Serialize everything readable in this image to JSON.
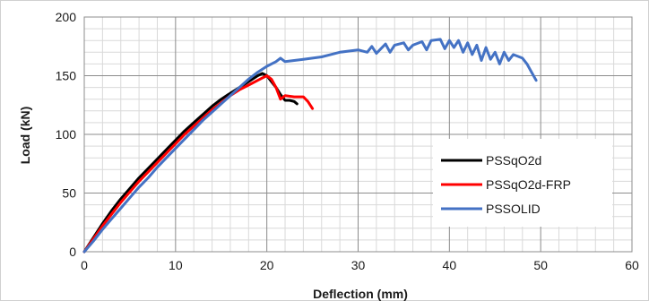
{
  "chart_data": {
    "type": "line",
    "xlabel": "Deflection (mm)",
    "ylabel": "Load (kN)",
    "xlim": [
      0,
      60
    ],
    "ylim": [
      0,
      200
    ],
    "x_major_ticks": [
      0,
      10,
      20,
      30,
      40,
      50,
      60
    ],
    "y_major_ticks": [
      0,
      50,
      100,
      150,
      200
    ],
    "x_tick_labels": [
      "0",
      "10",
      "20",
      "30",
      "40",
      "50",
      "60"
    ],
    "y_tick_labels": [
      "0",
      "50",
      "100",
      "150",
      "200"
    ],
    "x_minor_step": 2,
    "y_minor_step": 10,
    "grid": true,
    "legend": "right-bottom",
    "series": [
      {
        "name": "PSSqO2d",
        "color": "#000000",
        "points": [
          [
            0,
            0
          ],
          [
            1,
            12
          ],
          [
            2,
            24
          ],
          [
            3,
            35
          ],
          [
            4,
            45
          ],
          [
            5,
            54
          ],
          [
            6,
            63
          ],
          [
            7,
            71
          ],
          [
            8,
            79
          ],
          [
            9,
            87
          ],
          [
            10,
            95
          ],
          [
            11,
            103
          ],
          [
            12,
            110
          ],
          [
            13,
            117
          ],
          [
            14,
            124
          ],
          [
            15,
            130
          ],
          [
            16,
            135
          ],
          [
            17,
            140
          ],
          [
            18,
            145
          ],
          [
            19,
            150
          ],
          [
            19.5,
            152
          ],
          [
            20,
            150
          ],
          [
            20.5,
            145
          ],
          [
            21,
            140
          ],
          [
            21.5,
            134
          ],
          [
            22,
            129
          ],
          [
            22.5,
            129
          ],
          [
            23,
            128
          ],
          [
            23.3,
            126
          ]
        ]
      },
      {
        "name": "PSSqO2d-FRP",
        "color": "#ff0000",
        "points": [
          [
            0,
            0
          ],
          [
            1,
            11
          ],
          [
            2,
            22
          ],
          [
            3,
            32
          ],
          [
            4,
            42
          ],
          [
            5,
            51
          ],
          [
            6,
            60
          ],
          [
            7,
            68
          ],
          [
            8,
            76
          ],
          [
            9,
            84
          ],
          [
            10,
            92
          ],
          [
            11,
            100
          ],
          [
            12,
            107
          ],
          [
            13,
            114
          ],
          [
            14,
            121
          ],
          [
            15,
            127
          ],
          [
            16,
            133
          ],
          [
            17,
            138
          ],
          [
            18,
            142
          ],
          [
            19,
            146
          ],
          [
            19.5,
            148
          ],
          [
            20,
            150
          ],
          [
            20.5,
            147
          ],
          [
            21,
            140
          ],
          [
            21.5,
            130
          ],
          [
            22,
            133
          ],
          [
            23,
            132
          ],
          [
            24,
            132
          ],
          [
            24.5,
            128
          ],
          [
            25,
            122
          ]
        ]
      },
      {
        "name": "PSSOLID",
        "color": "#4472c4",
        "points": [
          [
            0,
            0
          ],
          [
            1,
            9
          ],
          [
            2,
            19
          ],
          [
            3,
            28
          ],
          [
            4,
            37
          ],
          [
            5,
            46
          ],
          [
            6,
            55
          ],
          [
            7,
            63
          ],
          [
            8,
            72
          ],
          [
            9,
            80
          ],
          [
            10,
            88
          ],
          [
            11,
            96
          ],
          [
            12,
            104
          ],
          [
            13,
            112
          ],
          [
            14,
            119
          ],
          [
            15,
            126
          ],
          [
            16,
            133
          ],
          [
            17,
            140
          ],
          [
            18,
            147
          ],
          [
            19,
            153
          ],
          [
            20,
            158
          ],
          [
            21,
            162
          ],
          [
            21.5,
            165
          ],
          [
            22,
            162
          ],
          [
            23,
            163
          ],
          [
            24,
            164
          ],
          [
            25,
            165
          ],
          [
            26,
            166
          ],
          [
            27,
            168
          ],
          [
            28,
            170
          ],
          [
            29,
            171
          ],
          [
            30,
            172
          ],
          [
            31,
            170
          ],
          [
            31.5,
            175
          ],
          [
            32,
            169
          ],
          [
            33,
            177
          ],
          [
            33.5,
            170
          ],
          [
            34,
            176
          ],
          [
            35,
            178
          ],
          [
            35.5,
            172
          ],
          [
            36,
            176
          ],
          [
            37,
            179
          ],
          [
            37.5,
            172
          ],
          [
            38,
            180
          ],
          [
            39,
            181
          ],
          [
            39.5,
            173
          ],
          [
            40,
            180
          ],
          [
            40.5,
            174
          ],
          [
            41,
            180
          ],
          [
            41.5,
            170
          ],
          [
            42,
            178
          ],
          [
            42.5,
            168
          ],
          [
            43,
            176
          ],
          [
            43.5,
            163
          ],
          [
            44,
            174
          ],
          [
            44.5,
            164
          ],
          [
            45,
            170
          ],
          [
            45.5,
            160
          ],
          [
            46,
            170
          ],
          [
            46.5,
            163
          ],
          [
            47,
            168
          ],
          [
            48,
            165
          ],
          [
            48.5,
            160
          ],
          [
            49,
            153
          ],
          [
            49.5,
            146
          ]
        ]
      }
    ]
  }
}
